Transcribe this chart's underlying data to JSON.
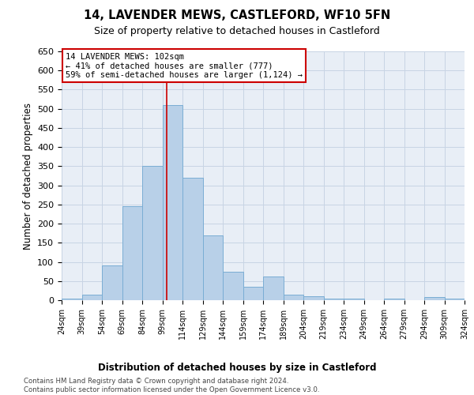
{
  "title": "14, LAVENDER MEWS, CASTLEFORD, WF10 5FN",
  "subtitle": "Size of property relative to detached houses in Castleford",
  "xlabel_bottom": "Distribution of detached houses by size in Castleford",
  "ylabel": "Number of detached properties",
  "bar_color": "#b8d0e8",
  "bar_edgecolor": "#7aadd4",
  "annotation_box_color": "#cc0000",
  "vline_color": "#cc0000",
  "vline_x": 102,
  "grid_color": "#c8d4e4",
  "background_color": "#e8eef6",
  "footer_text": "Contains HM Land Registry data © Crown copyright and database right 2024.\nContains public sector information licensed under the Open Government Licence v3.0.",
  "annotation_lines": [
    "14 LAVENDER MEWS: 102sqm",
    "← 41% of detached houses are smaller (777)",
    "59% of semi-detached houses are larger (1,124) →"
  ],
  "bin_edges": [
    24,
    39,
    54,
    69,
    84,
    99,
    114,
    129,
    144,
    159,
    174,
    189,
    204,
    219,
    234,
    249,
    264,
    279,
    294,
    309,
    324
  ],
  "bin_counts": [
    5,
    15,
    90,
    245,
    350,
    510,
    320,
    170,
    75,
    35,
    62,
    15,
    10,
    5,
    5,
    0,
    5,
    0,
    8,
    5
  ],
  "ylim": [
    0,
    650
  ],
  "yticks": [
    0,
    50,
    100,
    150,
    200,
    250,
    300,
    350,
    400,
    450,
    500,
    550,
    600,
    650
  ]
}
